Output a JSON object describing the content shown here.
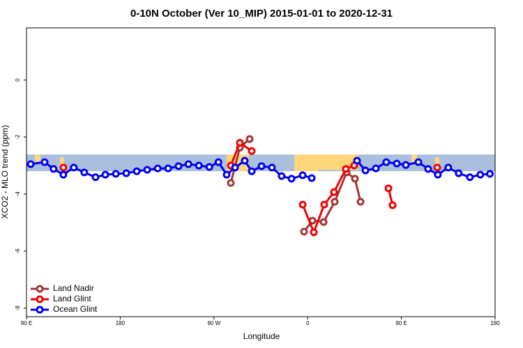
{
  "chart_data": {
    "type": "line",
    "title": "0-10N October (Ver 10_MIP)   2015-01-01 to 2020-12-31",
    "x_label": "Longitude",
    "y_label": "XCO2 - MLO trend (ppm)",
    "xlim": [
      90,
      540
    ],
    "xticks": [
      {
        "value": 90,
        "label": "90 E"
      },
      180,
      {
        "value": 270,
        "label": "90 W"
      },
      {
        "value": 360,
        "label": "0"
      },
      {
        "value": 450,
        "label": "90 E"
      },
      {
        "value": 540,
        "label": "180"
      }
    ],
    "ylim": [
      -8.3,
      1.83
    ],
    "yticks": [
      0,
      -2,
      -4,
      -6,
      -8
    ],
    "legend": "bottom-left",
    "series": [
      {
        "name": "Land Nadir",
        "color": "#a33333",
        "x": [
          286.2,
          294.9,
          304.3,
          null,
          356.5,
          364.6,
          375.3,
          386,
          397.4,
          405.4,
          410.8
        ],
        "values": [
          -3.61,
          -2.37,
          -2.07,
          null,
          -5.32,
          -4.93,
          -4.98,
          -4.27,
          -3.24,
          -3.46,
          -4.27
        ]
      },
      {
        "name": "Land Glint",
        "color": "#ee0000",
        "x": [
          125.5,
          null,
          286.2,
          294.9,
          306.3,
          null,
          355.2,
          365.9,
          375.9,
          385.3,
          396.7,
          404.7,
          null,
          437.6,
          441.6,
          null,
          484.4
        ],
        "values": [
          -3.07,
          null,
          -3.0,
          -2.2,
          -2.49,
          null,
          -4.37,
          -5.34,
          -4.37,
          -3.93,
          -3.12,
          -3.0,
          null,
          -3.8,
          -4.39,
          null,
          -3.07
        ]
      },
      {
        "name": "Ocean Glint",
        "color": "#0000ee",
        "x": [
          94,
          107.4,
          116,
          125.4,
          135.4,
          145.5,
          156.3,
          165.7,
          175.8,
          185.8,
          195.9,
          205.9,
          216,
          226,
          236,
          245.5,
          255.5,
          265.6,
          274.3,
          282.2,
          290.3,
          299.6,
          306.3,
          315.7,
          325.7,
          335,
          344.5,
          355.2,
          363.9,
          null,
          407.4,
          415.5,
          425.5,
          435.5,
          445.6,
          454.3,
          466.3,
          475.7,
          485,
          495,
          505,
          515.8,
          525.8,
          535
        ],
        "values": [
          -2.95,
          -2.88,
          -3.12,
          -3.32,
          -3.07,
          -3.24,
          -3.41,
          -3.32,
          -3.29,
          -3.27,
          -3.2,
          -3.15,
          -3.1,
          -3.1,
          -3.02,
          -2.95,
          -3.0,
          -3.05,
          -2.88,
          -3.32,
          -3.07,
          -2.83,
          -3.2,
          -3.02,
          -3.07,
          -3.37,
          -3.46,
          -3.34,
          -3.44,
          null,
          -2.83,
          -3.17,
          -3.1,
          -2.88,
          -2.93,
          -2.98,
          -2.88,
          -3.12,
          -3.32,
          -3.07,
          -3.27,
          -3.41,
          -3.32,
          -3.29
        ]
      }
    ]
  }
}
